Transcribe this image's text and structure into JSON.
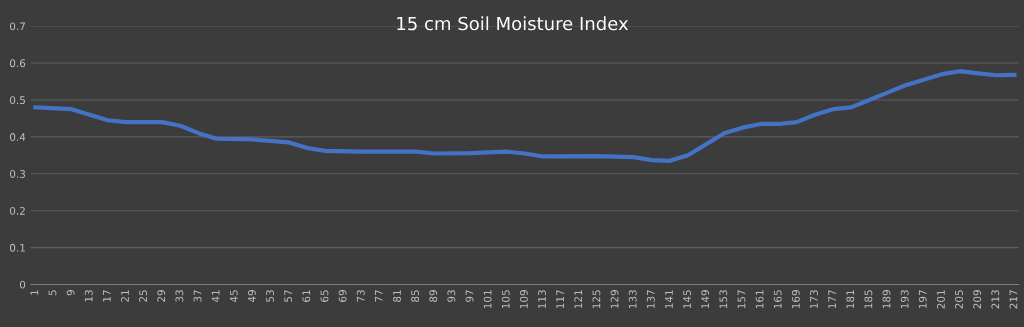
{
  "chart_data": {
    "type": "line",
    "title": "15 cm Soil Moisture Index",
    "series": [
      {
        "color": "#4472c4",
        "x": [
          1,
          9,
          13,
          17,
          21,
          29,
          33,
          37,
          41,
          49,
          57,
          61,
          65,
          73,
          85,
          89,
          97,
          105,
          109,
          113,
          125,
          133,
          137,
          141,
          145,
          149,
          153,
          157,
          161,
          165,
          169,
          173,
          177,
          181,
          185,
          189,
          193,
          197,
          201,
          205,
          209,
          213,
          217
        ],
        "values": [
          0.48,
          0.475,
          0.46,
          0.445,
          0.44,
          0.44,
          0.43,
          0.41,
          0.395,
          0.393,
          0.385,
          0.37,
          0.362,
          0.36,
          0.36,
          0.355,
          0.356,
          0.36,
          0.355,
          0.347,
          0.348,
          0.345,
          0.337,
          0.335,
          0.35,
          0.38,
          0.41,
          0.425,
          0.435,
          0.435,
          0.44,
          0.46,
          0.475,
          0.48,
          0.5,
          0.52,
          0.54,
          0.555,
          0.57,
          0.578,
          0.572,
          0.567,
          0.568
        ]
      }
    ],
    "xlim": [
      0,
      218
    ],
    "xticks": [
      1,
      5,
      9,
      13,
      17,
      21,
      25,
      29,
      33,
      37,
      41,
      45,
      49,
      53,
      57,
      61,
      65,
      69,
      73,
      77,
      81,
      85,
      89,
      93,
      97,
      101,
      105,
      109,
      113,
      117,
      121,
      125,
      129,
      133,
      137,
      141,
      145,
      149,
      153,
      157,
      161,
      165,
      169,
      173,
      177,
      181,
      185,
      189,
      193,
      197,
      201,
      205,
      209,
      213,
      217
    ],
    "ylim": [
      0,
      0.7
    ],
    "yticks": [
      0,
      0.1,
      0.2,
      0.3,
      0.4,
      0.5,
      0.6,
      0.7
    ],
    "grid": "y",
    "marker": "none",
    "line_style": "solid"
  }
}
